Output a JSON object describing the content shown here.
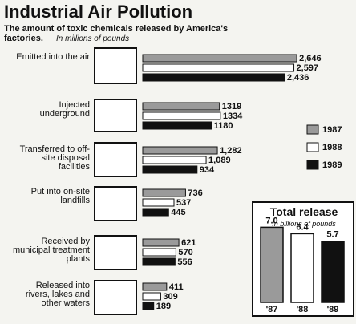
{
  "chart_data": [
    {
      "type": "bar",
      "orientation": "horizontal",
      "title": "Industrial Air Pollution",
      "subtitle": "The amount of toxic chemicals released by America's factories.",
      "unit_note": "In millions of pounds",
      "categories": [
        "Emitted into the air",
        "Injected underground",
        "Transferred to off-site disposal facilities",
        "Put into on-site landfills",
        "Received by municipal treatment plants",
        "Released into rivers, lakes and other waters"
      ],
      "series": [
        {
          "name": "1987",
          "color": "#9a9a9a",
          "values": [
            2646,
            1319,
            1282,
            736,
            621,
            411
          ],
          "value_labels": [
            "2,646",
            "1319",
            "1,282",
            "736",
            "621",
            "411"
          ]
        },
        {
          "name": "1988",
          "color": "#ffffff",
          "values": [
            2597,
            1334,
            1089,
            537,
            570,
            309
          ],
          "value_labels": [
            "2,597",
            "1334",
            "1,089",
            "537",
            "570",
            "309"
          ]
        },
        {
          "name": "1989",
          "color": "#111111",
          "values": [
            2436,
            1180,
            934,
            445,
            556,
            189
          ],
          "value_labels": [
            "2,436",
            "1180",
            "934",
            "445",
            "556",
            "189"
          ]
        }
      ],
      "xlim": [
        0,
        2700
      ],
      "legend": "right"
    },
    {
      "type": "bar",
      "title": "Total release",
      "subtitle": "In billions of pounds",
      "categories": [
        "'87",
        "'88",
        "'89"
      ],
      "values": [
        7.0,
        6.4,
        5.7
      ],
      "value_labels": [
        "7.0",
        "6.4",
        "5.7"
      ],
      "colors": [
        "#9a9a9a",
        "#ffffff",
        "#111111"
      ],
      "ylim": [
        0,
        8
      ]
    }
  ]
}
